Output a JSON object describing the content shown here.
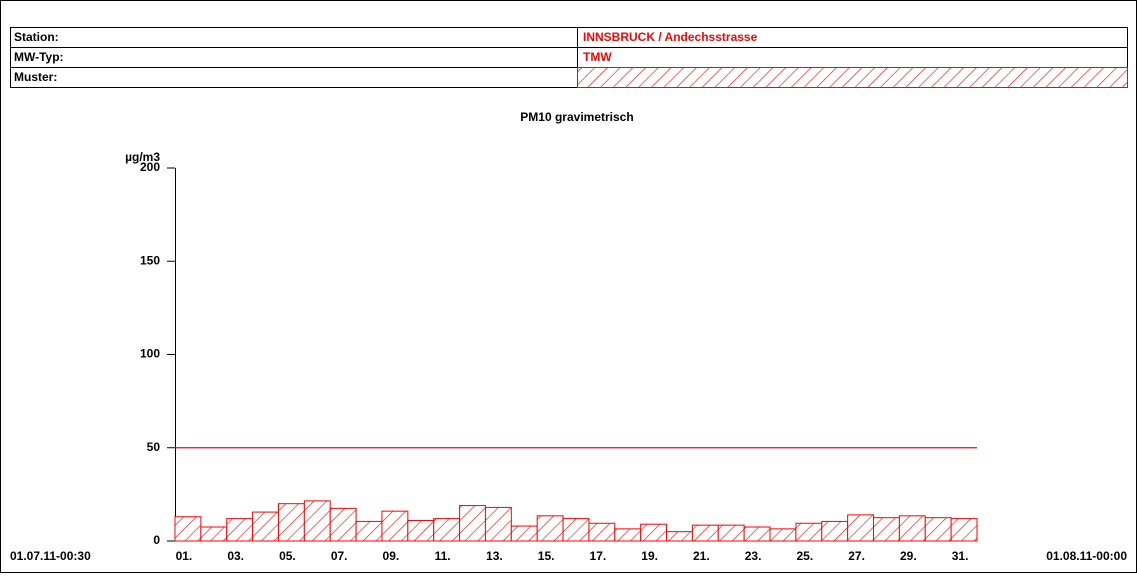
{
  "header": {
    "rows": [
      {
        "label": "Station:",
        "value": "INNSBRUCK / Andechsstrasse"
      },
      {
        "label": "MW-Typ:",
        "value": "TMW"
      },
      {
        "label": "Muster:"
      }
    ]
  },
  "chart_data": {
    "type": "bar",
    "title": "PM10 gravimetrisch",
    "y_label": "µg/m3",
    "start_label": "01.07.11-00:30",
    "end_label": "01.08.11-00:00",
    "categories": [
      "01.",
      null,
      "03.",
      null,
      "05.",
      null,
      "07.",
      null,
      "09.",
      null,
      "11.",
      null,
      "13.",
      null,
      "15.",
      null,
      "17.",
      null,
      "19.",
      null,
      "21.",
      null,
      "23.",
      null,
      "25.",
      null,
      "27.",
      null,
      "29.",
      null,
      "31."
    ],
    "values": [
      13,
      7.5,
      12,
      15.5,
      20,
      21.5,
      17.5,
      10.5,
      16,
      11,
      12,
      19,
      18,
      8,
      13.5,
      12,
      9.5,
      6.5,
      9,
      5,
      8.5,
      8.5,
      7.5,
      6.5,
      9.5,
      10.5,
      14,
      12.5,
      13.5,
      12.5,
      12
    ],
    "color": "#ff0000",
    "threshold": 50,
    "ylim": [
      0,
      200
    ],
    "yticks": [
      0,
      50,
      100,
      150,
      200
    ]
  }
}
